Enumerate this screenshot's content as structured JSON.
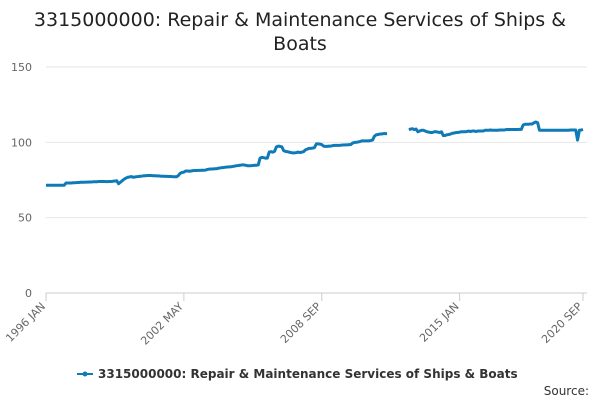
{
  "chart_data": {
    "type": "line",
    "title": "3315000000: Repair & Maintenance Services of Ships & Boats",
    "source_label": "Source:",
    "categories": [
      "1996 JAN",
      null,
      null,
      null,
      null,
      null,
      null,
      null,
      null,
      null,
      null,
      null,
      null,
      null,
      null,
      null,
      null,
      null,
      null,
      null,
      null,
      null,
      null,
      null,
      null,
      null,
      null,
      null,
      null,
      null,
      null,
      null,
      null,
      null,
      null,
      null,
      null,
      null,
      null,
      null,
      null,
      null,
      null,
      null,
      null,
      null,
      null,
      null,
      null,
      null,
      null,
      null,
      null,
      null,
      null,
      null,
      null,
      null,
      null,
      null,
      null,
      null,
      null,
      null,
      null,
      null,
      null,
      null,
      null,
      null,
      null,
      null,
      null,
      null,
      null,
      null,
      "2002 MAY",
      null,
      null,
      null,
      null,
      null,
      null,
      null,
      null,
      null,
      null,
      null,
      null,
      null,
      null,
      null,
      null,
      null,
      null,
      null,
      null,
      null,
      null,
      null,
      null,
      null,
      null,
      null,
      null,
      null,
      null,
      null,
      null,
      null,
      null,
      null,
      null,
      null,
      null,
      null,
      null,
      null,
      null,
      null,
      null,
      null,
      null,
      null,
      null,
      null,
      null,
      null,
      null,
      null,
      null,
      null,
      null,
      null,
      null,
      null,
      null,
      null,
      null,
      null,
      null,
      null,
      null,
      null,
      null,
      null,
      null,
      null,
      null,
      null,
      null,
      null,
      "2008 SEP",
      null,
      null,
      null,
      null,
      null,
      null,
      null,
      null,
      null,
      null,
      null,
      null,
      null,
      null,
      null,
      null,
      null,
      null,
      null,
      null,
      null,
      null,
      null,
      null,
      null,
      null,
      null,
      null,
      null,
      null,
      null,
      null,
      null,
      null,
      null,
      null,
      null,
      null,
      null,
      null,
      null,
      null,
      null,
      null,
      null,
      null,
      null,
      null,
      null,
      null,
      null,
      null,
      null,
      null,
      null,
      null,
      null,
      null,
      null,
      null,
      null,
      null,
      null,
      null,
      null,
      null,
      null,
      null,
      null,
      null,
      null,
      null,
      null,
      null,
      null,
      "2015 JAN",
      null,
      null,
      null,
      null,
      null,
      null,
      null,
      null,
      null,
      null,
      null,
      null,
      null,
      null,
      null,
      null,
      null,
      null,
      null,
      null,
      null,
      null,
      null,
      null,
      null,
      null,
      null,
      null,
      null,
      null,
      null,
      null,
      null,
      null,
      null,
      null,
      null,
      null,
      null,
      null,
      null,
      null,
      null,
      null,
      null,
      null,
      null,
      null,
      null,
      null,
      null,
      null,
      null,
      null,
      null,
      null,
      null,
      null,
      null,
      null,
      null,
      null,
      null,
      null,
      null,
      null,
      null,
      "2020 SEP"
    ],
    "series": [
      {
        "name": "3315000000: Repair & Maintenance Services of Ships & Boats",
        "color": "#0f7ab8",
        "values": [
          71.5,
          71.5,
          71.5,
          71.5,
          71.5,
          71.5,
          71.5,
          71.5,
          71.5,
          71.5,
          71.5,
          73,
          73,
          73,
          73,
          73.2,
          73.2,
          73.3,
          73.3,
          73.5,
          73.5,
          73.5,
          73.6,
          73.6,
          73.7,
          73.7,
          73.8,
          73.8,
          73.8,
          74,
          74,
          74,
          74,
          73.9,
          73.9,
          74,
          74,
          74.2,
          74.3,
          74.5,
          72.5,
          73.5,
          74.5,
          75.5,
          76.2,
          76.8,
          77,
          77.3,
          76.8,
          77,
          77.2,
          77.3,
          77.5,
          77.6,
          77.8,
          77.8,
          78,
          78,
          78,
          77.8,
          77.8,
          77.7,
          77.7,
          77.6,
          77.5,
          77.5,
          77.4,
          77.4,
          77.3,
          77.3,
          77.2,
          77.2,
          77.2,
          78,
          79.5,
          80,
          80.2,
          81,
          81,
          80.8,
          81,
          81.2,
          81.3,
          81.3,
          81.4,
          81.4,
          81.5,
          81.5,
          81.6,
          82,
          82.2,
          82.3,
          82.3,
          82.5,
          82.5,
          82.8,
          83,
          83.2,
          83.3,
          83.5,
          83.6,
          83.7,
          83.8,
          84,
          84.2,
          84.5,
          84.6,
          84.8,
          85,
          85,
          84.8,
          84.5,
          84.5,
          84.5,
          84.6,
          84.8,
          84.8,
          85,
          89.5,
          90,
          89.8,
          89.5,
          89.5,
          93.5,
          93.8,
          93.5,
          94,
          97,
          97.5,
          97.3,
          97,
          94.5,
          94,
          93.8,
          93.5,
          93.2,
          93,
          93,
          93.2,
          93.5,
          93.2,
          93.5,
          93.8,
          95,
          95.5,
          96,
          96,
          96.2,
          96.5,
          99,
          99,
          98.8,
          98.5,
          97.5,
          97.3,
          97.3,
          97.5,
          97.5,
          97.8,
          98,
          98,
          98,
          98,
          98.2,
          98.2,
          98.3,
          98.3,
          98.5,
          98.5,
          99.5,
          100,
          100,
          100.2,
          100.5,
          101,
          101,
          101,
          101,
          101,
          101.2,
          101.5,
          104,
          105,
          105.2,
          105.5,
          105.5,
          105.8,
          105.8,
          105.8,
          null,
          null,
          null,
          null,
          null,
          null,
          null,
          null,
          null,
          null,
          null,
          108.5,
          108.8,
          109,
          108.5,
          108.8,
          107,
          107.5,
          108,
          108,
          107.5,
          107,
          106.8,
          106.5,
          106.5,
          107,
          107,
          106.8,
          106.5,
          107,
          104.5,
          104.5,
          105,
          105.2,
          105.5,
          106,
          106.2,
          106.5,
          106.5,
          106.8,
          107,
          107,
          107,
          107.2,
          107.5,
          107.2,
          107.5,
          107.5,
          107.2,
          107.5,
          107.5,
          107.5,
          107.5,
          108,
          108,
          108,
          108.2,
          108,
          108,
          108,
          108,
          108.2,
          108.2,
          108.2,
          108.3,
          108.5,
          108.5,
          108.5,
          108.5,
          108.5,
          108.5,
          108.5,
          108.6,
          108.6,
          111.5,
          112,
          112,
          112,
          112.2,
          112.2,
          113,
          113.5,
          113,
          108,
          108,
          108,
          108,
          108,
          108,
          108,
          108,
          108,
          108,
          108,
          108,
          108,
          108,
          108,
          108,
          108,
          108.2,
          108.2,
          108.2,
          108.2,
          101.5,
          108,
          108.2,
          108.5
        ]
      }
    ],
    "ylim": [
      0,
      150
    ],
    "yticks": [
      0,
      50,
      100,
      150
    ],
    "grid": true
  }
}
